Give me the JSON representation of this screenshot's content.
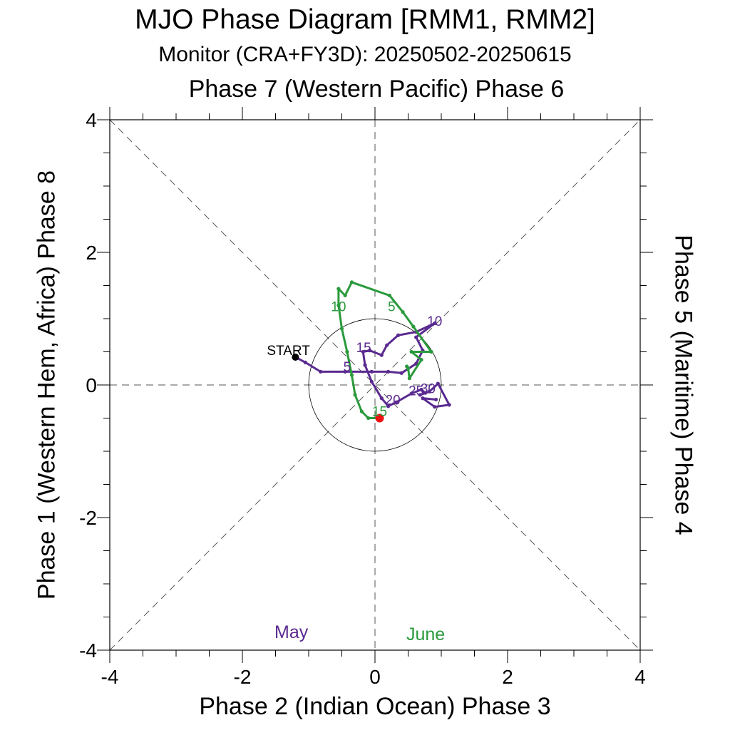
{
  "chart_data": {
    "type": "line",
    "title": "MJO Phase Diagram [RMM1, RMM2]",
    "subtitle": "Monitor (CRA+FY3D): 20250502-20250615",
    "top_label": "Phase 7 (Western Pacific) Phase 6",
    "xlabel": "Phase 2 (Indian Ocean) Phase 3",
    "ylabel": "Phase 1 (Western Hem, Africa) Phase 8",
    "right_label": "Phase 5 (Maritime) Phase 4",
    "xlim": [
      -4,
      4
    ],
    "ylim": [
      -4,
      4
    ],
    "x_ticks": [
      -4,
      -2,
      0,
      2,
      4
    ],
    "y_ticks": [
      -4,
      -2,
      0,
      2,
      4
    ],
    "x_tick_labels": [
      "-4",
      "-2",
      "0",
      "2",
      "4"
    ],
    "y_tick_labels": [
      "-4",
      "-2",
      "0",
      "2",
      "4"
    ],
    "unit_circle_radius": 1,
    "start_label": "START",
    "start_point": [
      -1.2,
      0.42
    ],
    "end_point": [
      0.07,
      -0.5
    ],
    "series": [
      {
        "name": "May",
        "color": "#5a2a90",
        "points": [
          [
            -1.2,
            0.42
          ],
          [
            -1.05,
            0.34
          ],
          [
            -0.82,
            0.2
          ],
          [
            -0.45,
            0.2
          ],
          [
            -0.05,
            0.2
          ],
          [
            0.2,
            0.2
          ],
          [
            0.4,
            0.18
          ],
          [
            0.62,
            0.32
          ],
          [
            0.72,
            0.52
          ],
          [
            0.62,
            0.72
          ],
          [
            0.9,
            0.93
          ],
          [
            0.62,
            0.8
          ],
          [
            0.35,
            0.75
          ],
          [
            0.18,
            0.6
          ],
          [
            0.1,
            0.45
          ],
          [
            -0.08,
            0.52
          ],
          [
            -0.18,
            0.5
          ],
          [
            -0.15,
            0.3
          ],
          [
            -0.05,
            0.05
          ],
          [
            0.1,
            -0.2
          ],
          [
            0.2,
            -0.32
          ],
          [
            0.32,
            -0.26
          ],
          [
            0.55,
            -0.13
          ],
          [
            0.7,
            -0.07
          ],
          [
            0.76,
            -0.12
          ],
          [
            0.68,
            -0.15
          ],
          [
            0.82,
            -0.1
          ],
          [
            0.95,
            0.02
          ],
          [
            1.12,
            -0.3
          ],
          [
            0.9,
            -0.33
          ],
          [
            0.72,
            -0.2
          ],
          [
            0.92,
            -0.22
          ]
        ],
        "day_labels": [
          {
            "text": "5",
            "at": [
              -0.42,
              0.28
            ]
          },
          {
            "text": "10",
            "at": [
              0.9,
              0.97
            ]
          },
          {
            "text": "15",
            "at": [
              -0.17,
              0.57
            ]
          },
          {
            "text": "20",
            "at": [
              0.27,
              -0.22
            ]
          },
          {
            "text": "25",
            "at": [
              0.62,
              -0.08
            ]
          },
          {
            "text": "30",
            "at": [
              0.8,
              -0.05
            ]
          }
        ]
      },
      {
        "name": "June",
        "color": "#2a9a3c",
        "points": [
          [
            0.48,
            0.28
          ],
          [
            0.5,
            0.25
          ],
          [
            0.52,
            0.1
          ],
          [
            0.7,
            0.38
          ],
          [
            0.55,
            0.5
          ],
          [
            0.85,
            0.5
          ],
          [
            0.58,
            0.88
          ],
          [
            0.42,
            1.1
          ],
          [
            0.22,
            1.35
          ],
          [
            -0.35,
            1.55
          ],
          [
            -0.45,
            1.35
          ],
          [
            -0.55,
            1.45
          ],
          [
            -0.55,
            1.2
          ],
          [
            -0.5,
            0.85
          ],
          [
            -0.42,
            0.5
          ],
          [
            -0.35,
            0.15
          ],
          [
            -0.3,
            -0.15
          ],
          [
            -0.2,
            -0.4
          ],
          [
            -0.1,
            -0.5
          ],
          [
            0.07,
            -0.5
          ]
        ],
        "day_labels": [
          {
            "text": "5",
            "at": [
              0.25,
              1.19
            ]
          },
          {
            "text": "10",
            "at": [
              -0.55,
              1.19
            ]
          },
          {
            "text": "15",
            "at": [
              0.07,
              -0.39
            ]
          }
        ]
      }
    ]
  },
  "legend": {
    "may": "May",
    "june": "June",
    "may_color": "#5a2a90",
    "june_color": "#2a9a3c"
  }
}
